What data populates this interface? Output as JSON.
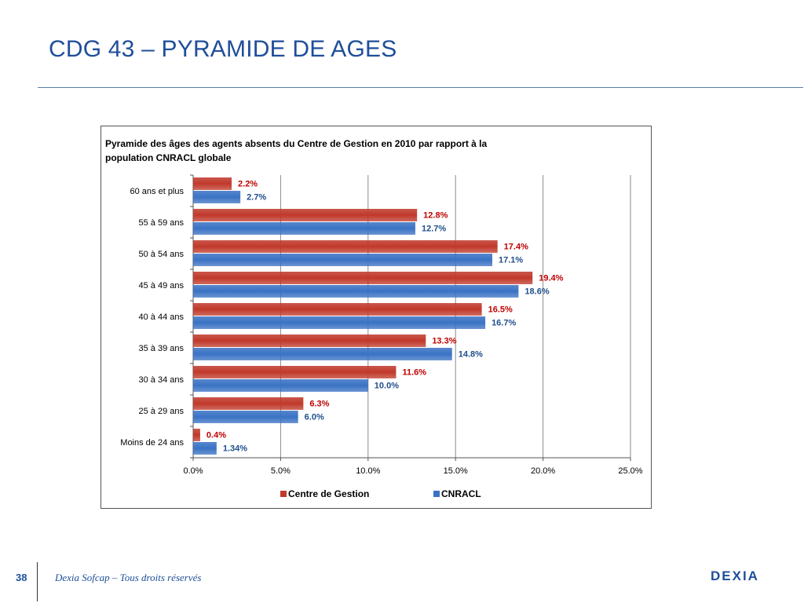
{
  "page": {
    "title": "CDG 43 – PYRAMIDE DE AGES",
    "page_number": "38",
    "footer": "Dexia Sofcap – Tous droits réservés",
    "logo_text": "DEXIA"
  },
  "chart_data": {
    "type": "bar",
    "orientation": "horizontal",
    "title_lines": [
      "Pyramide des âges des agents absents du Centre de Gestion en 2010 par rapport à la",
      "population CNRACL globale"
    ],
    "categories": [
      "60 ans et plus",
      "55 à 59 ans",
      "50 à 54 ans",
      "45 à 49 ans",
      "40 à 44 ans",
      "35 à 39 ans",
      "30 à 34 ans",
      "25 à 29 ans",
      "Moins de 24 ans"
    ],
    "series": [
      {
        "name": "Centre de Gestion",
        "color": "#c0392b",
        "label_color": "#c00000",
        "values": [
          2.2,
          12.8,
          17.4,
          19.4,
          16.5,
          13.3,
          11.6,
          6.3,
          0.4
        ],
        "labels": [
          "2.2%",
          "12.8%",
          "17.4%",
          "19.4%",
          "16.5%",
          "13.3%",
          "11.6%",
          "6.3%",
          "0.4%"
        ]
      },
      {
        "name": "CNRACL",
        "color": "#3a72c4",
        "label_color": "#1f4e8c",
        "values": [
          2.7,
          12.7,
          17.1,
          18.6,
          16.7,
          14.8,
          10.0,
          6.0,
          1.34
        ],
        "labels": [
          "2.7%",
          "12.7%",
          "17.1%",
          "18.6%",
          "16.7%",
          "14.8%",
          "10.0%",
          "6.0%",
          "1.34%"
        ]
      }
    ],
    "xlim": [
      0,
      25
    ],
    "xticks": [
      "0.0%",
      "5.0%",
      "10.0%",
      "15.0%",
      "20.0%",
      "25.0%"
    ],
    "grid": true,
    "legend_position": "bottom"
  }
}
